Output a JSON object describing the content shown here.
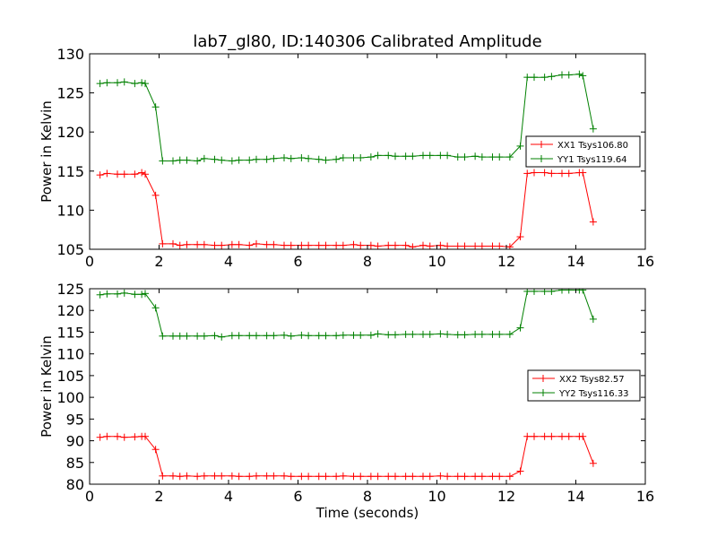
{
  "chart_data": [
    {
      "type": "line",
      "title": "lab7_gl80, ID:140306 Calibrated Amplitude",
      "xlabel": "",
      "ylabel": "Power in Kelvin",
      "xlim": [
        0,
        16
      ],
      "ylim": [
        105,
        130
      ],
      "xticks": [
        "0",
        "2",
        "4",
        "6",
        "8",
        "10",
        "12",
        "14",
        "16"
      ],
      "yticks": [
        "105",
        "110",
        "115",
        "120",
        "125",
        "130"
      ],
      "legend_position": "center-right",
      "series": [
        {
          "name": "XX1 Tsys106.80",
          "color": "#ff0000",
          "x": [
            0.3,
            0.5,
            0.8,
            1.0,
            1.3,
            1.5,
            1.6,
            1.9,
            2.1,
            2.4,
            2.6,
            2.8,
            3.1,
            3.3,
            3.6,
            3.8,
            4.1,
            4.3,
            4.6,
            4.8,
            5.1,
            5.3,
            5.6,
            5.8,
            6.1,
            6.3,
            6.6,
            6.8,
            7.1,
            7.3,
            7.6,
            7.8,
            8.1,
            8.3,
            8.6,
            8.8,
            9.1,
            9.3,
            9.6,
            9.8,
            10.1,
            10.3,
            10.6,
            10.8,
            11.1,
            11.3,
            11.6,
            11.8,
            12.1,
            12.4,
            12.6,
            12.8,
            13.1,
            13.3,
            13.6,
            13.8,
            14.1,
            14.2,
            14.5
          ],
          "y": [
            114.5,
            114.7,
            114.6,
            114.6,
            114.6,
            114.8,
            114.6,
            111.9,
            105.7,
            105.7,
            105.5,
            105.6,
            105.6,
            105.6,
            105.5,
            105.5,
            105.6,
            105.6,
            105.5,
            105.7,
            105.6,
            105.6,
            105.5,
            105.5,
            105.5,
            105.5,
            105.5,
            105.5,
            105.5,
            105.5,
            105.6,
            105.5,
            105.5,
            105.4,
            105.5,
            105.5,
            105.5,
            105.3,
            105.5,
            105.4,
            105.5,
            105.4,
            105.4,
            105.4,
            105.4,
            105.4,
            105.4,
            105.4,
            105.3,
            106.6,
            114.7,
            114.8,
            114.8,
            114.7,
            114.7,
            114.7,
            114.8,
            114.8,
            108.5
          ]
        },
        {
          "name": "YY1 Tsys119.64",
          "color": "#008000",
          "x": [
            0.3,
            0.5,
            0.8,
            1.0,
            1.3,
            1.5,
            1.6,
            1.9,
            2.1,
            2.4,
            2.6,
            2.8,
            3.1,
            3.3,
            3.6,
            3.8,
            4.1,
            4.3,
            4.6,
            4.8,
            5.1,
            5.3,
            5.6,
            5.8,
            6.1,
            6.3,
            6.6,
            6.8,
            7.1,
            7.3,
            7.6,
            7.8,
            8.1,
            8.3,
            8.6,
            8.8,
            9.1,
            9.3,
            9.6,
            9.8,
            10.1,
            10.3,
            10.6,
            10.8,
            11.1,
            11.3,
            11.6,
            11.8,
            12.1,
            12.4,
            12.6,
            12.8,
            13.1,
            13.3,
            13.6,
            13.8,
            14.1,
            14.2,
            14.5
          ],
          "y": [
            126.2,
            126.3,
            126.3,
            126.4,
            126.2,
            126.3,
            126.2,
            123.2,
            116.3,
            116.3,
            116.4,
            116.4,
            116.3,
            116.6,
            116.5,
            116.4,
            116.3,
            116.4,
            116.4,
            116.5,
            116.5,
            116.6,
            116.7,
            116.6,
            116.7,
            116.6,
            116.5,
            116.4,
            116.5,
            116.7,
            116.7,
            116.7,
            116.8,
            117.0,
            117.0,
            116.9,
            116.9,
            116.9,
            117.0,
            117.0,
            117.0,
            117.0,
            116.8,
            116.8,
            116.9,
            116.8,
            116.8,
            116.8,
            116.8,
            118.2,
            127.0,
            127.0,
            127.0,
            127.1,
            127.3,
            127.3,
            127.4,
            127.2,
            120.4
          ]
        }
      ]
    },
    {
      "type": "line",
      "title": "",
      "xlabel": "Time (seconds)",
      "ylabel": "Power in Kelvin",
      "xlim": [
        0,
        16
      ],
      "ylim": [
        80,
        125
      ],
      "xticks": [
        "0",
        "2",
        "4",
        "6",
        "8",
        "10",
        "12",
        "14",
        "16"
      ],
      "yticks": [
        "80",
        "85",
        "90",
        "95",
        "100",
        "105",
        "110",
        "115",
        "120",
        "125"
      ],
      "legend_position": "center-right",
      "series": [
        {
          "name": "XX2 Tsys82.57",
          "color": "#ff0000",
          "x": [
            0.3,
            0.5,
            0.8,
            1.0,
            1.3,
            1.5,
            1.6,
            1.9,
            2.1,
            2.4,
            2.6,
            2.8,
            3.1,
            3.3,
            3.6,
            3.8,
            4.1,
            4.3,
            4.6,
            4.8,
            5.1,
            5.3,
            5.6,
            5.8,
            6.1,
            6.3,
            6.6,
            6.8,
            7.1,
            7.3,
            7.6,
            7.8,
            8.1,
            8.3,
            8.6,
            8.8,
            9.1,
            9.3,
            9.6,
            9.8,
            10.1,
            10.3,
            10.6,
            10.8,
            11.1,
            11.3,
            11.6,
            11.8,
            12.1,
            12.4,
            12.6,
            12.8,
            13.1,
            13.3,
            13.6,
            13.8,
            14.1,
            14.2,
            14.5
          ],
          "y": [
            90.8,
            91.0,
            91.0,
            90.8,
            90.9,
            91.0,
            91.0,
            88.0,
            81.9,
            81.9,
            81.8,
            81.9,
            81.8,
            81.9,
            81.9,
            81.9,
            81.9,
            81.8,
            81.8,
            81.9,
            81.9,
            81.9,
            81.9,
            81.8,
            81.8,
            81.8,
            81.8,
            81.8,
            81.8,
            81.9,
            81.8,
            81.8,
            81.8,
            81.8,
            81.8,
            81.8,
            81.8,
            81.8,
            81.8,
            81.8,
            81.9,
            81.8,
            81.8,
            81.8,
            81.8,
            81.8,
            81.8,
            81.8,
            81.8,
            83.0,
            91.0,
            91.0,
            91.0,
            91.0,
            91.0,
            91.0,
            91.0,
            91.0,
            84.8
          ]
        },
        {
          "name": "YY2 Tsys116.33",
          "color": "#008000",
          "x": [
            0.3,
            0.5,
            0.8,
            1.0,
            1.3,
            1.5,
            1.6,
            1.9,
            2.1,
            2.4,
            2.6,
            2.8,
            3.1,
            3.3,
            3.6,
            3.8,
            4.1,
            4.3,
            4.6,
            4.8,
            5.1,
            5.3,
            5.6,
            5.8,
            6.1,
            6.3,
            6.6,
            6.8,
            7.1,
            7.3,
            7.6,
            7.8,
            8.1,
            8.3,
            8.6,
            8.8,
            9.1,
            9.3,
            9.6,
            9.8,
            10.1,
            10.3,
            10.6,
            10.8,
            11.1,
            11.3,
            11.6,
            11.8,
            12.1,
            12.4,
            12.6,
            12.8,
            13.1,
            13.3,
            13.6,
            13.8,
            14.1,
            14.2,
            14.5
          ],
          "y": [
            123.6,
            123.8,
            123.8,
            124.0,
            123.7,
            123.7,
            123.9,
            120.6,
            114.1,
            114.1,
            114.1,
            114.1,
            114.1,
            114.1,
            114.2,
            113.9,
            114.2,
            114.2,
            114.2,
            114.2,
            114.2,
            114.2,
            114.3,
            114.1,
            114.3,
            114.2,
            114.2,
            114.2,
            114.2,
            114.3,
            114.3,
            114.3,
            114.3,
            114.6,
            114.4,
            114.4,
            114.5,
            114.5,
            114.5,
            114.5,
            114.6,
            114.5,
            114.4,
            114.4,
            114.5,
            114.5,
            114.5,
            114.5,
            114.5,
            116.0,
            124.4,
            124.4,
            124.4,
            124.4,
            124.7,
            124.7,
            124.7,
            124.7,
            118.0
          ]
        }
      ]
    }
  ]
}
